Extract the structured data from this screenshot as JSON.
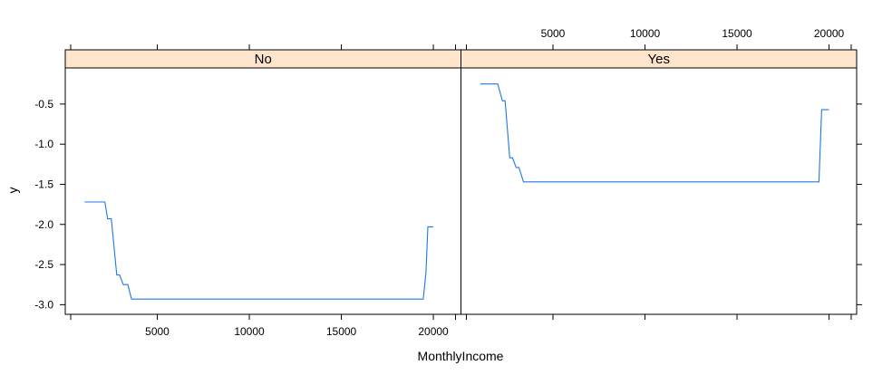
{
  "chart_data": {
    "type": "line",
    "xlabel": "MonthlyIncome",
    "ylabel": "y",
    "xlim": [
      0,
      21500
    ],
    "ylim": [
      -3.12,
      -0.05
    ],
    "x_ticks": [
      5000,
      10000,
      15000,
      20000
    ],
    "y_ticks": [
      -0.5,
      -1.0,
      -1.5,
      -2.0,
      -2.5,
      -3.0
    ],
    "y_tick_labels": [
      "-0.5",
      "-1.0",
      "-1.5",
      "-2.0",
      "-2.5",
      "-3.0"
    ],
    "strip_color": "#ffe5cc",
    "line_color": "#1f78e8",
    "panels": [
      {
        "name": "No",
        "x": [
          1050,
          2150,
          2300,
          2500,
          2800,
          2950,
          3150,
          3400,
          3600,
          19450,
          19600,
          19700,
          20000
        ],
        "y": [
          -1.72,
          -1.72,
          -1.93,
          -1.93,
          -2.63,
          -2.63,
          -2.75,
          -2.75,
          -2.93,
          -2.93,
          -2.6,
          -2.03,
          -2.03
        ]
      },
      {
        "name": "Yes",
        "x": [
          1050,
          2000,
          2250,
          2400,
          2650,
          2800,
          3000,
          3150,
          3400,
          19450,
          19600,
          20000
        ],
        "y": [
          -0.25,
          -0.25,
          -0.46,
          -0.46,
          -1.17,
          -1.17,
          -1.29,
          -1.29,
          -1.47,
          -1.47,
          -0.57,
          -0.57
        ]
      }
    ]
  }
}
